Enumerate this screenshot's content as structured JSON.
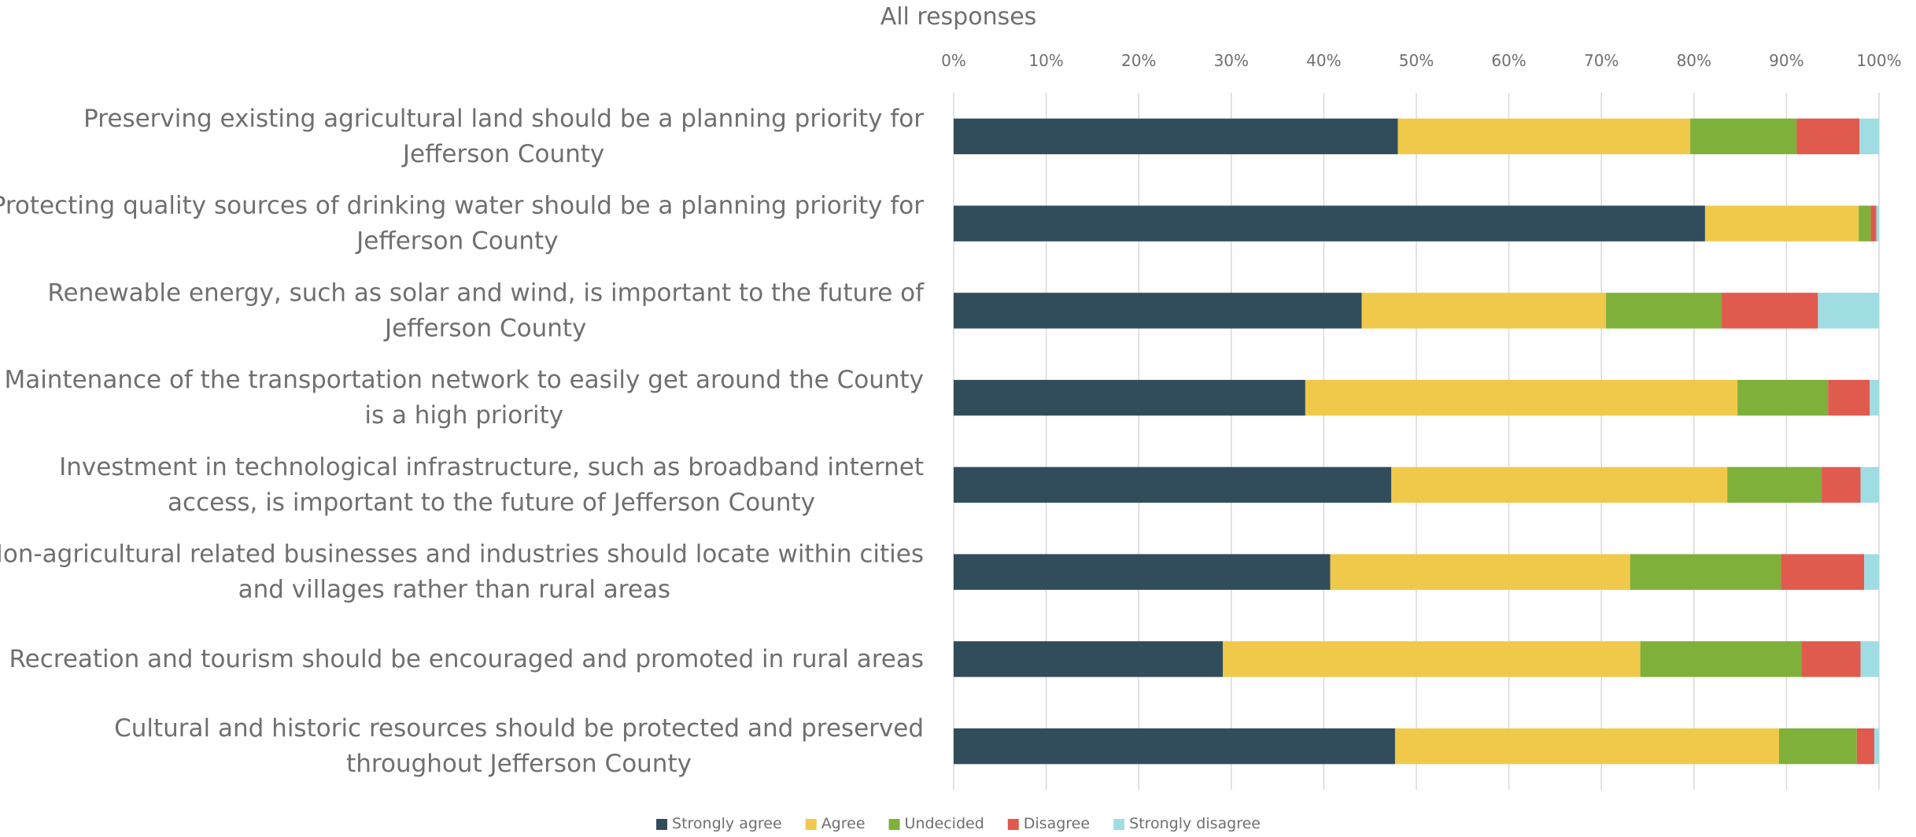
{
  "chart_data": {
    "type": "bar",
    "orientation": "horizontal",
    "stacked": "percent",
    "title": "All responses",
    "xlabel": "",
    "ylabel": "",
    "xlim": [
      0,
      100
    ],
    "x_ticks": [
      "0%",
      "10%",
      "20%",
      "30%",
      "40%",
      "50%",
      "60%",
      "70%",
      "80%",
      "90%",
      "100%"
    ],
    "grid": true,
    "legend_position": "bottom",
    "categories": [
      [
        "Preserving existing agricultural land should be a planning priority for",
        "Jefferson County"
      ],
      [
        "Protecting quality sources of drinking water should be a planning priority for",
        "Jefferson County"
      ],
      [
        "Renewable energy, such as solar and wind, is important to the future of",
        "Jefferson County"
      ],
      [
        "Maintenance of the transportation network to easily get around the County",
        "is a high priority"
      ],
      [
        "Investment in technological infrastructure, such as broadband internet",
        "access, is important to the future of Jefferson County"
      ],
      [
        "Non-agricultural related businesses and industries should locate within cities",
        "and villages rather than rural areas"
      ],
      [
        "Recreation and tourism should be encouraged and promoted in rural areas"
      ],
      [
        "Cultural and historic resources should be protected and preserved",
        "throughout Jefferson County"
      ]
    ],
    "series": [
      {
        "name": "Strongly agree",
        "color": "#314d5c",
        "values": [
          48.0,
          81.2,
          44.1,
          38.0,
          47.3,
          40.7,
          29.1,
          47.7
        ]
      },
      {
        "name": "Agree",
        "color": "#f0c94a",
        "values": [
          31.6,
          16.6,
          26.4,
          46.7,
          36.3,
          32.4,
          45.1,
          41.5
        ]
      },
      {
        "name": "Undecided",
        "color": "#7fb03a",
        "values": [
          11.5,
          1.3,
          12.5,
          9.8,
          10.2,
          16.3,
          17.4,
          8.4
        ]
      },
      {
        "name": "Disagree",
        "color": "#e05a4e",
        "values": [
          6.8,
          0.6,
          10.4,
          4.5,
          4.2,
          9.0,
          6.4,
          1.9
        ]
      },
      {
        "name": "Strongly disagree",
        "color": "#a0dde3",
        "values": [
          2.1,
          0.3,
          6.6,
          1.0,
          2.0,
          1.6,
          2.0,
          0.5
        ]
      }
    ]
  }
}
